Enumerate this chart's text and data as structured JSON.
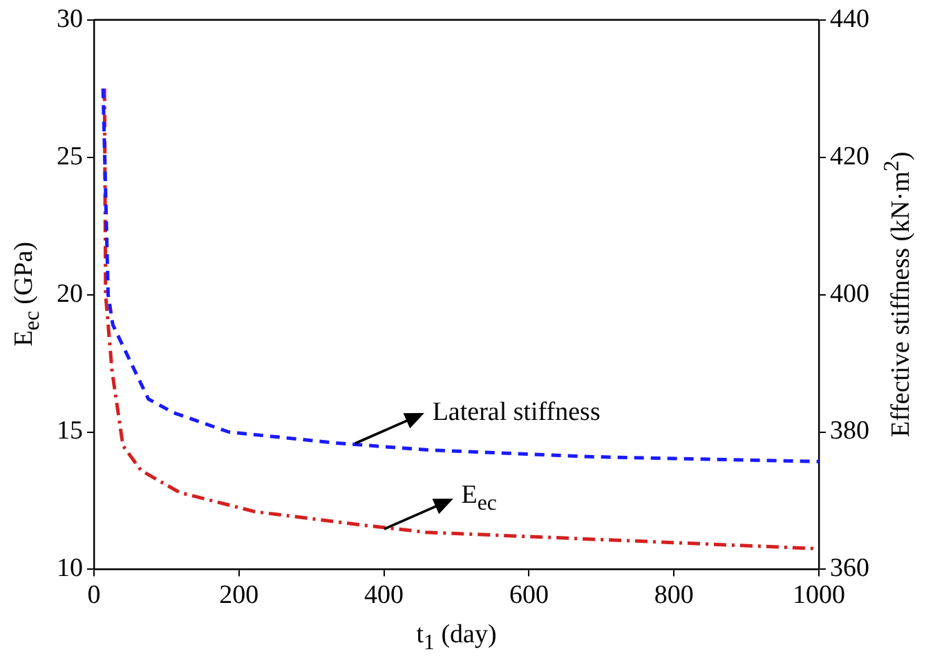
{
  "chart_data": {
    "type": "line",
    "xlabel": "t$_{1}$ (day)",
    "ylabel": "E$_{ec}$ (GPa)",
    "y2label": "Effective stiffness (kN·m$^{2}$)",
    "xlim": [
      0,
      1000
    ],
    "xticks": [
      0,
      200,
      400,
      600,
      800,
      1000
    ],
    "ylim": [
      10,
      30
    ],
    "yticks": [
      10,
      15,
      20,
      25,
      30
    ],
    "y2lim": [
      360,
      440
    ],
    "y2ticks": [
      360,
      380,
      400,
      420,
      440
    ],
    "grid": false,
    "legend": false,
    "marker": "none",
    "series": [
      {
        "color": "#d42020",
        "line_style": "dashdot",
        "axis": "y",
        "x": [
          14.5,
          16,
          25,
          40,
          65,
          118,
          222,
          374,
          458,
          685,
          1000
        ],
        "values": [
          27.5,
          20,
          17.2,
          14.5,
          13.6,
          12.8,
          12.1,
          11.6,
          11.35,
          11.1,
          10.75
        ]
      },
      {
        "color": "#1a1aff",
        "line_style": "dashed",
        "axis": "y2",
        "x": [
          12.5,
          19.5,
          26,
          75,
          110,
          186,
          333,
          458,
          685,
          1000
        ],
        "values": [
          430,
          400,
          395.6,
          384.8,
          382.8,
          380,
          378.4,
          377.4,
          376.4,
          375.7
        ]
      }
    ],
    "annotations": [
      {
        "text": "Lateral stiffness",
        "x": 360,
        "y": 14.6
      },
      {
        "text": "E$_{ec}$",
        "x": 400,
        "y": 11.45
      }
    ]
  }
}
